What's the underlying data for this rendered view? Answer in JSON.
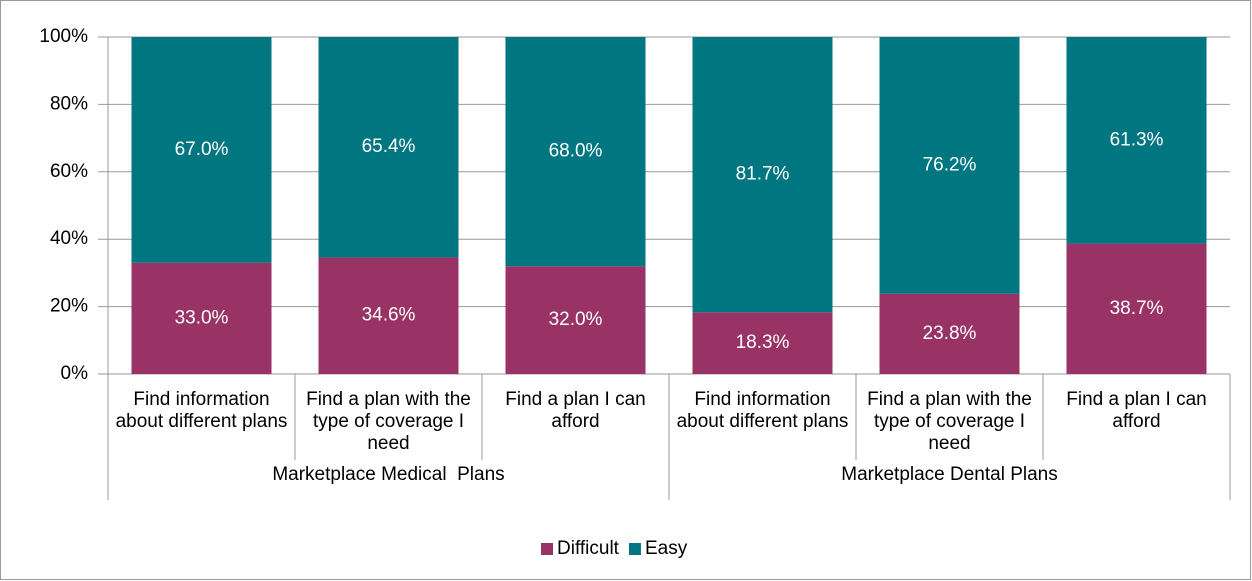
{
  "chart_data": {
    "type": "stacked_bar",
    "categories": [
      "Find information about different plans",
      "Find a plan with the type of coverage I need",
      "Find a plan I can afford",
      "Find information about different plans",
      "Find a plan with the type of coverage I need",
      "Find a plan I can afford"
    ],
    "groups": [
      "Marketplace Medical  Plans",
      "Marketplace Dental Plans"
    ],
    "series": [
      {
        "name": "Difficult",
        "color": "#993366",
        "values": [
          33.0,
          34.6,
          32.0,
          18.3,
          23.8,
          38.7
        ],
        "value_labels": [
          "33.0%",
          "34.6%",
          "32.0%",
          "18.3%",
          "23.8%",
          "38.7%"
        ]
      },
      {
        "name": "Easy",
        "color": "#007681",
        "values": [
          67.0,
          65.4,
          68.0,
          81.7,
          76.2,
          61.3
        ],
        "value_labels": [
          "67.0%",
          "65.4%",
          "68.0%",
          "81.7%",
          "76.2%",
          "61.3%"
        ]
      }
    ],
    "ylim": [
      0,
      100
    ],
    "yticks": [
      {
        "value": 0,
        "label": "0%"
      },
      {
        "value": 20,
        "label": "20%"
      },
      {
        "value": 40,
        "label": "40%"
      },
      {
        "value": 60,
        "label": "60%"
      },
      {
        "value": 80,
        "label": "80%"
      },
      {
        "value": 100,
        "label": "100%"
      }
    ],
    "grid": true,
    "legend": "bottom"
  }
}
